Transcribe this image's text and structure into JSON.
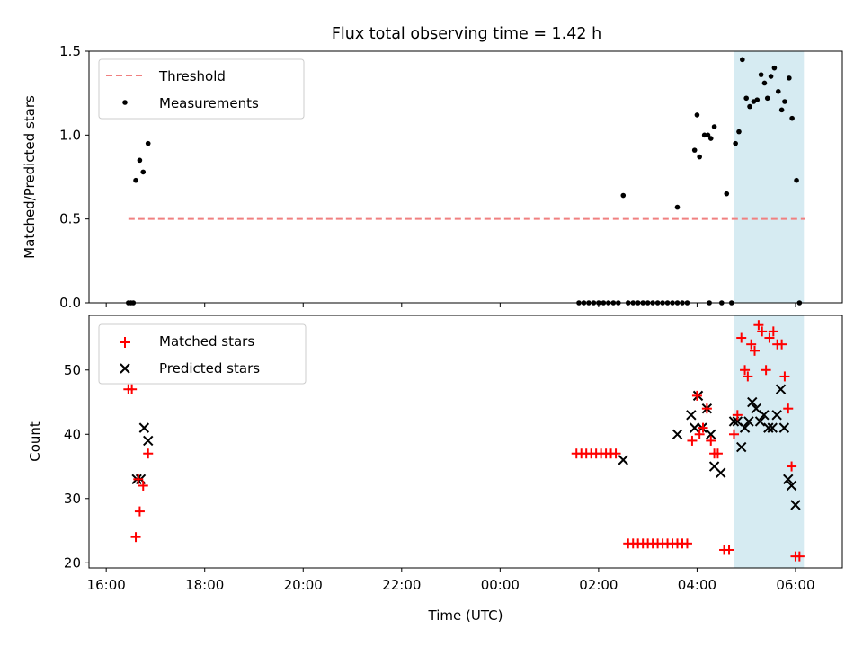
{
  "title": "Flux total observing time = 1.42 h",
  "chart_data": [
    {
      "type": "scatter",
      "panel": "top",
      "ylabel": "Matched/Predicted stars",
      "xlabel": "",
      "ylim": [
        0,
        1.5
      ],
      "yticks": [
        0.0,
        0.5,
        1.0,
        1.5
      ],
      "ytick_labels": [
        "0.0",
        "0.5",
        "1.0",
        "1.5"
      ],
      "grid": false,
      "legend_placement": "upper-left",
      "legend": [
        {
          "label": "Threshold",
          "style": "dashed-line",
          "color": "#f08080"
        },
        {
          "label": "Measurements",
          "style": "dot",
          "color": "#000000"
        }
      ],
      "threshold": {
        "value": 0.5,
        "x_start": 16.45,
        "x_end": 30.2,
        "color": "#f08080"
      },
      "shaded_region": {
        "x_start": 28.75,
        "x_end": 30.17,
        "color": "#add8e6"
      },
      "series": [
        {
          "name": "Measurements",
          "marker": "dot",
          "color": "#000000",
          "points": [
            [
              16.45,
              0
            ],
            [
              16.5,
              0
            ],
            [
              16.55,
              0
            ],
            [
              16.6,
              0.73
            ],
            [
              16.68,
              0.85
            ],
            [
              16.75,
              0.78
            ],
            [
              16.85,
              0.95
            ],
            [
              25.6,
              0
            ],
            [
              25.7,
              0
            ],
            [
              25.8,
              0
            ],
            [
              25.9,
              0
            ],
            [
              26.0,
              0
            ],
            [
              26.1,
              0
            ],
            [
              26.2,
              0
            ],
            [
              26.3,
              0
            ],
            [
              26.4,
              0
            ],
            [
              26.5,
              0.64
            ],
            [
              26.6,
              0
            ],
            [
              26.7,
              0
            ],
            [
              26.8,
              0
            ],
            [
              26.9,
              0
            ],
            [
              27.0,
              0
            ],
            [
              27.1,
              0
            ],
            [
              27.2,
              0
            ],
            [
              27.3,
              0
            ],
            [
              27.4,
              0
            ],
            [
              27.5,
              0
            ],
            [
              27.6,
              0
            ],
            [
              27.7,
              0
            ],
            [
              27.8,
              0
            ],
            [
              27.6,
              0.57
            ],
            [
              27.95,
              0.91
            ],
            [
              28.0,
              1.12
            ],
            [
              28.05,
              0.87
            ],
            [
              28.15,
              1.0
            ],
            [
              28.22,
              1.0
            ],
            [
              28.28,
              0.98
            ],
            [
              28.35,
              1.05
            ],
            [
              28.25,
              0
            ],
            [
              28.5,
              0
            ],
            [
              28.6,
              0.65
            ],
            [
              28.7,
              0
            ],
            [
              28.78,
              0.95
            ],
            [
              28.85,
              1.02
            ],
            [
              28.92,
              1.45
            ],
            [
              29.0,
              1.22
            ],
            [
              29.07,
              1.17
            ],
            [
              29.15,
              1.2
            ],
            [
              29.22,
              1.21
            ],
            [
              29.3,
              1.36
            ],
            [
              29.37,
              1.31
            ],
            [
              29.43,
              1.22
            ],
            [
              29.5,
              1.35
            ],
            [
              29.57,
              1.4
            ],
            [
              29.65,
              1.26
            ],
            [
              29.72,
              1.15
            ],
            [
              29.78,
              1.2
            ],
            [
              29.87,
              1.34
            ],
            [
              29.93,
              1.1
            ],
            [
              30.02,
              0.73
            ],
            [
              30.08,
              0
            ]
          ]
        }
      ]
    },
    {
      "type": "scatter",
      "panel": "bottom",
      "ylabel": "Count",
      "xlabel": "Time (UTC)",
      "ylim": [
        19.2,
        58.5
      ],
      "yticks": [
        20,
        30,
        40,
        50
      ],
      "ytick_labels": [
        "20",
        "30",
        "40",
        "50"
      ],
      "xlim": [
        15.65,
        30.95
      ],
      "xticks": [
        16,
        18,
        20,
        22,
        24,
        26,
        28,
        30
      ],
      "xtick_labels": [
        "16:00",
        "18:00",
        "20:00",
        "22:00",
        "00:00",
        "02:00",
        "04:00",
        "06:00"
      ],
      "grid": false,
      "legend_placement": "upper-left",
      "legend": [
        {
          "label": "Matched stars",
          "style": "plus",
          "color": "#ff0000"
        },
        {
          "label": "Predicted stars",
          "style": "cross",
          "color": "#000000"
        }
      ],
      "shaded_region": {
        "x_start": 28.75,
        "x_end": 30.17,
        "color": "#add8e6"
      },
      "series": [
        {
          "name": "Matched stars",
          "marker": "plus",
          "color": "#ff0000",
          "points": [
            [
              16.45,
              47
            ],
            [
              16.52,
              47
            ],
            [
              16.6,
              24
            ],
            [
              16.65,
              33
            ],
            [
              16.68,
              28
            ],
            [
              16.75,
              32
            ],
            [
              16.85,
              37
            ],
            [
              25.55,
              37
            ],
            [
              25.65,
              37
            ],
            [
              25.75,
              37
            ],
            [
              25.85,
              37
            ],
            [
              25.95,
              37
            ],
            [
              26.05,
              37
            ],
            [
              26.15,
              37
            ],
            [
              26.25,
              37
            ],
            [
              26.35,
              37
            ],
            [
              26.6,
              23
            ],
            [
              26.7,
              23
            ],
            [
              26.8,
              23
            ],
            [
              26.9,
              23
            ],
            [
              27.0,
              23
            ],
            [
              27.1,
              23
            ],
            [
              27.2,
              23
            ],
            [
              27.3,
              23
            ],
            [
              27.4,
              23
            ],
            [
              27.5,
              23
            ],
            [
              27.6,
              23
            ],
            [
              27.7,
              23
            ],
            [
              27.8,
              23
            ],
            [
              27.9,
              39
            ],
            [
              28.0,
              46
            ],
            [
              28.05,
              40
            ],
            [
              28.12,
              41
            ],
            [
              28.2,
              44
            ],
            [
              28.28,
              39
            ],
            [
              28.35,
              37
            ],
            [
              28.42,
              37
            ],
            [
              28.55,
              22
            ],
            [
              28.65,
              22
            ],
            [
              28.75,
              40
            ],
            [
              28.82,
              43
            ],
            [
              28.9,
              55
            ],
            [
              28.97,
              50
            ],
            [
              29.03,
              49
            ],
            [
              29.1,
              54
            ],
            [
              29.17,
              53
            ],
            [
              29.25,
              57
            ],
            [
              29.32,
              56
            ],
            [
              29.4,
              50
            ],
            [
              29.47,
              55
            ],
            [
              29.55,
              56
            ],
            [
              29.63,
              54
            ],
            [
              29.72,
              54
            ],
            [
              29.78,
              49
            ],
            [
              29.85,
              44
            ],
            [
              29.92,
              35
            ],
            [
              30.0,
              21
            ],
            [
              30.08,
              21
            ]
          ]
        },
        {
          "name": "Predicted stars",
          "marker": "cross",
          "color": "#000000",
          "points": [
            [
              16.62,
              33
            ],
            [
              16.7,
              33
            ],
            [
              16.77,
              41
            ],
            [
              16.85,
              39
            ],
            [
              26.5,
              36
            ],
            [
              27.6,
              40
            ],
            [
              27.88,
              43
            ],
            [
              27.95,
              41
            ],
            [
              28.02,
              46
            ],
            [
              28.1,
              41
            ],
            [
              28.2,
              44
            ],
            [
              28.28,
              40
            ],
            [
              28.35,
              35
            ],
            [
              28.48,
              34
            ],
            [
              28.75,
              42
            ],
            [
              28.82,
              42
            ],
            [
              28.9,
              38
            ],
            [
              28.97,
              41
            ],
            [
              29.05,
              42
            ],
            [
              29.12,
              45
            ],
            [
              29.2,
              44
            ],
            [
              29.28,
              42
            ],
            [
              29.36,
              43
            ],
            [
              29.45,
              41
            ],
            [
              29.53,
              41
            ],
            [
              29.62,
              43
            ],
            [
              29.7,
              47
            ],
            [
              29.77,
              41
            ],
            [
              29.85,
              33
            ],
            [
              29.92,
              32
            ],
            [
              30.0,
              29
            ]
          ]
        }
      ]
    }
  ]
}
